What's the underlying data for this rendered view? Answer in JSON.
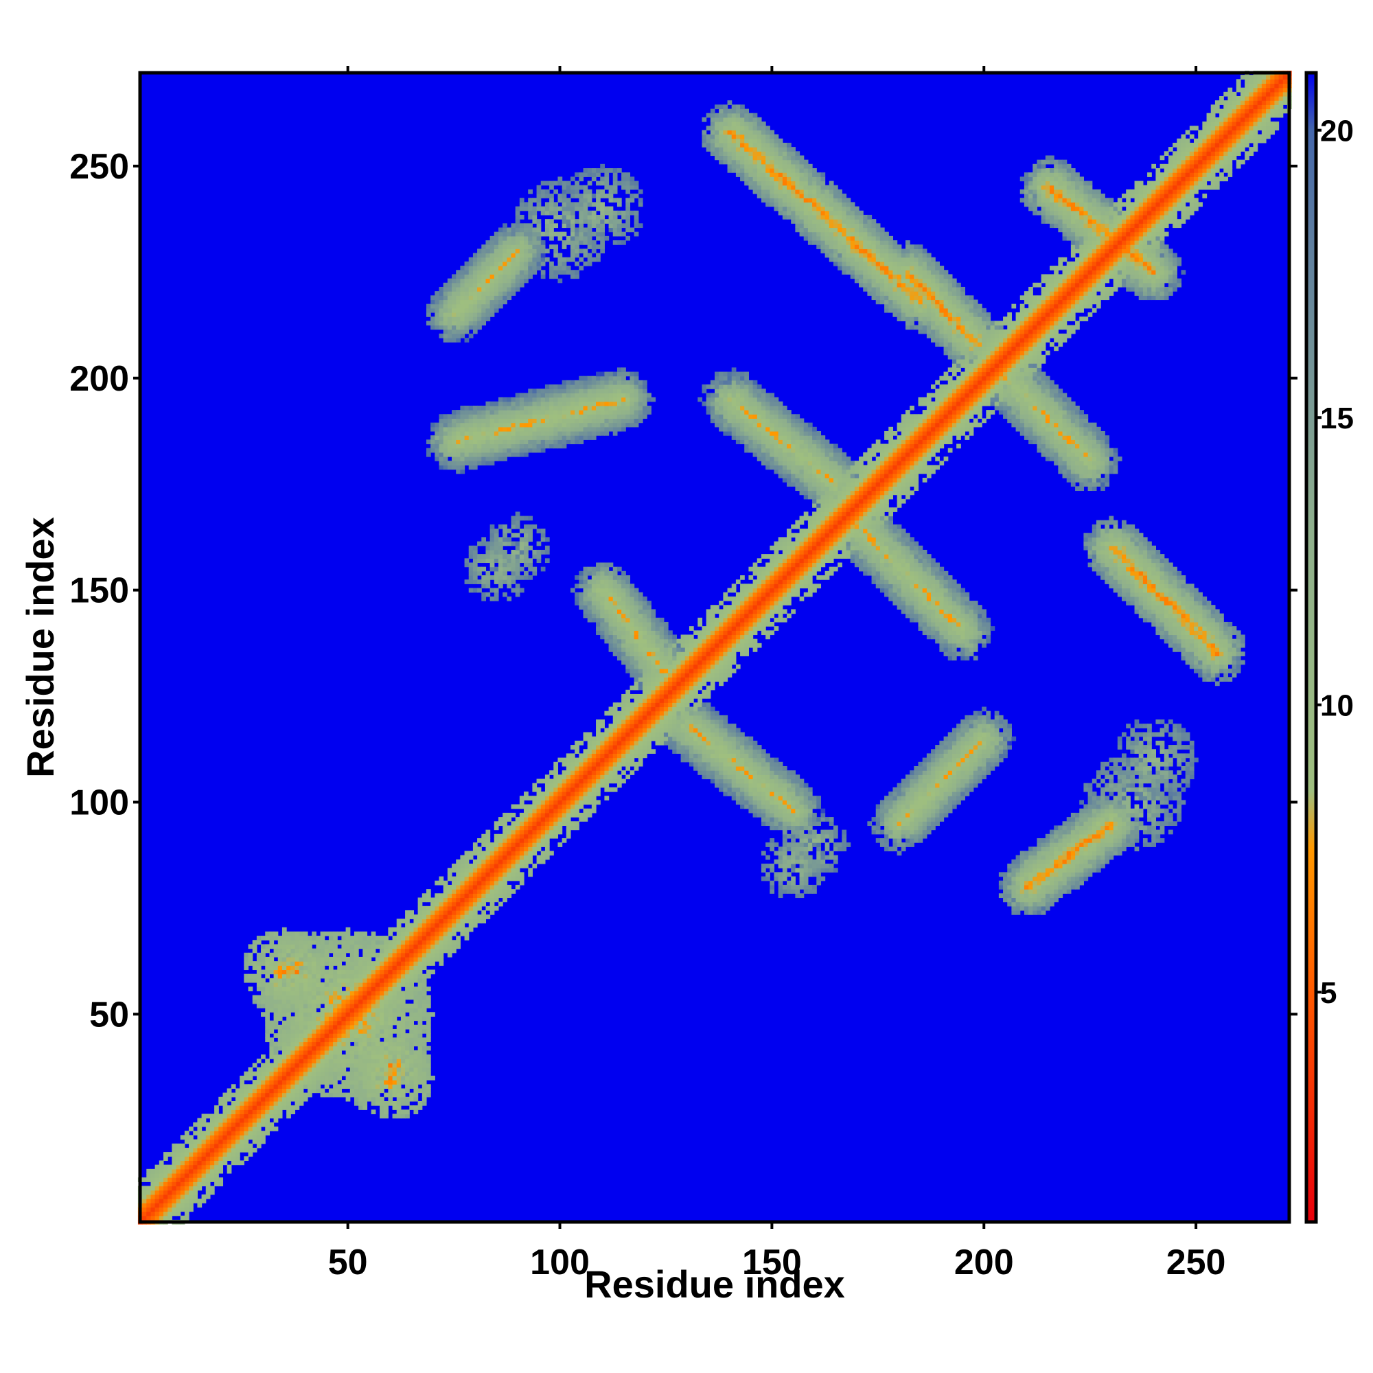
{
  "chart_data": {
    "type": "heatmap",
    "title": "",
    "xlabel": "Residue index",
    "ylabel": "Residue index",
    "n_residues": 272,
    "xlim": [
      1,
      272
    ],
    "ylim": [
      1,
      272
    ],
    "x_ticks": [
      50,
      100,
      150,
      200,
      250
    ],
    "y_ticks": [
      50,
      100,
      150,
      200,
      250
    ],
    "background_value": 21,
    "colorbar": {
      "ticks": [
        5,
        10,
        15,
        20
      ],
      "range": [
        1,
        21
      ],
      "colors": [
        {
          "value": 1,
          "color": "#e8000b"
        },
        {
          "value": 5,
          "color": "#ff5a00"
        },
        {
          "value": 7.5,
          "color": "#ff9900"
        },
        {
          "value": 8.5,
          "color": "#9fbf7f"
        },
        {
          "value": 13,
          "color": "#8fb08c"
        },
        {
          "value": 18,
          "color": "#5f7f9f"
        },
        {
          "value": 20,
          "color": "#4466aa"
        },
        {
          "value": 21,
          "color": "#0000f0"
        }
      ]
    },
    "features": [
      {
        "kind": "diagonal-band",
        "from": [
          1,
          1
        ],
        "to": [
          272,
          272
        ],
        "min_value": 3.8
      },
      {
        "kind": "contact-ribbon",
        "orientation": "anti-diagonal",
        "from": [
          110,
          150
        ],
        "to": [
          125,
          130
        ],
        "min_value": 7
      },
      {
        "kind": "contact-ribbon",
        "orientation": "anti-diagonal",
        "from": [
          130,
          118
        ],
        "to": [
          155,
          98
        ],
        "min_value": 7
      },
      {
        "kind": "contact-ribbon",
        "orientation": "anti-diagonal",
        "from": [
          140,
          258
        ],
        "to": [
          185,
          218
        ],
        "min_value": 6
      },
      {
        "kind": "contact-ribbon",
        "orientation": "anti-diagonal",
        "from": [
          182,
          225
        ],
        "to": [
          198,
          208
        ],
        "min_value": 6
      },
      {
        "kind": "contact-ribbon",
        "orientation": "anti-diagonal",
        "from": [
          140,
          195
        ],
        "to": [
          165,
          175
        ],
        "min_value": 7
      },
      {
        "kind": "contact-ribbon",
        "orientation": "anti-diagonal",
        "from": [
          170,
          165
        ],
        "to": [
          195,
          140
        ],
        "min_value": 7
      },
      {
        "kind": "contact-ribbon",
        "orientation": "anti-diagonal",
        "from": [
          205,
          200
        ],
        "to": [
          225,
          180
        ],
        "min_value": 7
      },
      {
        "kind": "contact-ribbon",
        "orientation": "anti-diagonal",
        "from": [
          230,
          160
        ],
        "to": [
          255,
          135
        ],
        "min_value": 6
      },
      {
        "kind": "contact-ribbon",
        "orientation": "anti-diagonal",
        "from": [
          215,
          245
        ],
        "to": [
          240,
          225
        ],
        "min_value": 6
      },
      {
        "kind": "contact-ribbon",
        "orientation": "diagonal",
        "from": [
          75,
          185
        ],
        "to": [
          115,
          195
        ],
        "min_value": 7
      },
      {
        "kind": "contact-ribbon",
        "orientation": "diagonal",
        "from": [
          75,
          215
        ],
        "to": [
          90,
          230
        ],
        "min_value": 7
      },
      {
        "kind": "contact-ribbon",
        "orientation": "diagonal",
        "from": [
          180,
          95
        ],
        "to": [
          200,
          115
        ],
        "min_value": 7
      },
      {
        "kind": "contact-ribbon",
        "orientation": "diagonal",
        "from": [
          210,
          80
        ],
        "to": [
          230,
          95
        ],
        "min_value": 6
      },
      {
        "kind": "contact-patch",
        "center": [
          50,
          50
        ],
        "radius": 20,
        "min_value": 6
      },
      {
        "kind": "contact-patch",
        "center": [
          35,
          60
        ],
        "radius": 10,
        "min_value": 6
      },
      {
        "kind": "contact-patch",
        "center": [
          60,
          38
        ],
        "radius": 10,
        "min_value": 6
      },
      {
        "kind": "contact-patch",
        "center": [
          100,
          235
        ],
        "radius": 12,
        "min_value": 11
      },
      {
        "kind": "contact-patch",
        "center": [
          160,
          90
        ],
        "radius": 8,
        "min_value": 11
      },
      {
        "kind": "contact-patch",
        "center": [
          240,
          110
        ],
        "radius": 10,
        "min_value": 11
      },
      {
        "kind": "contact-patch",
        "center": [
          85,
          155
        ],
        "radius": 8,
        "min_value": 11
      }
    ]
  }
}
